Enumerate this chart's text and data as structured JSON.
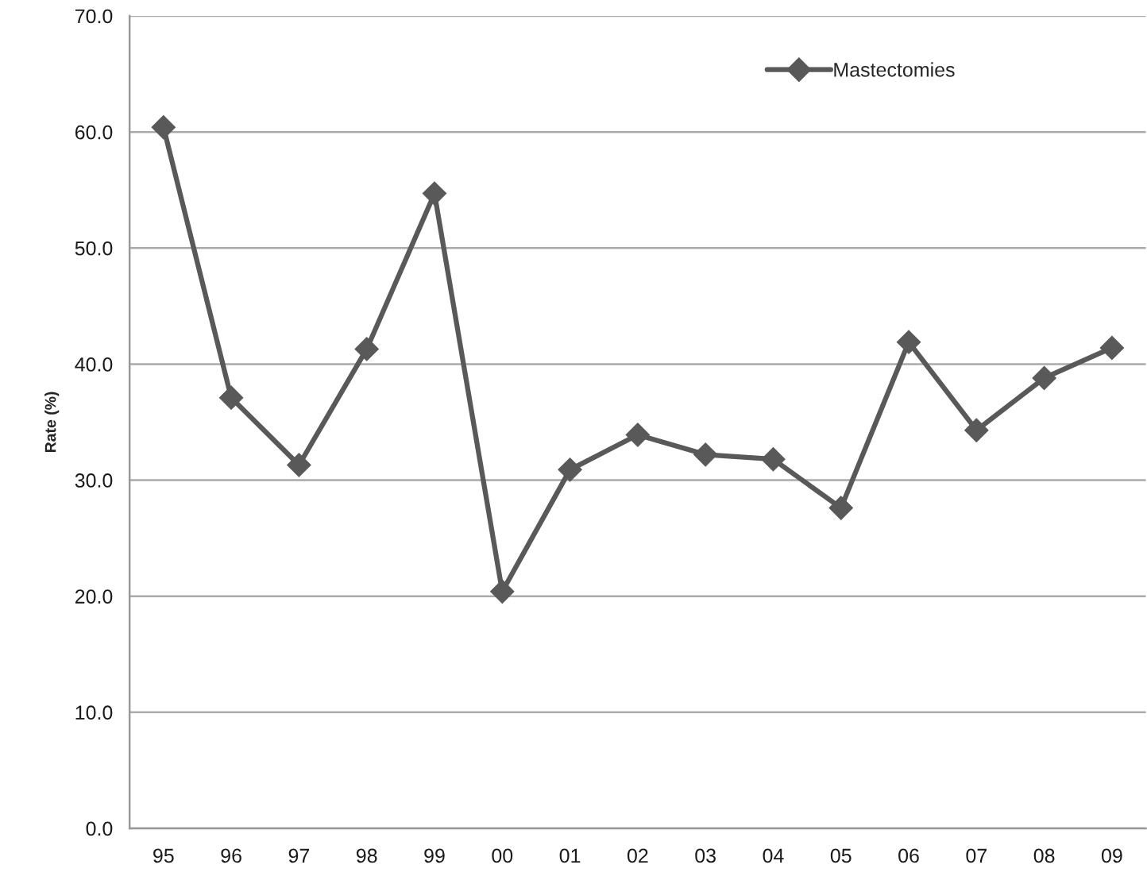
{
  "chart_data": {
    "type": "line",
    "ylabel": "Rate (%)",
    "categories": [
      "95",
      "96",
      "97",
      "98",
      "99",
      "00",
      "01",
      "02",
      "03",
      "04",
      "05",
      "06",
      "07",
      "08",
      "09"
    ],
    "series": [
      {
        "name": "Mastectomies",
        "color": "#595959",
        "values": [
          60.4,
          37.1,
          31.3,
          41.3,
          54.7,
          20.4,
          30.9,
          33.9,
          32.2,
          31.8,
          27.6,
          41.9,
          34.3,
          38.8,
          41.4
        ]
      }
    ],
    "ylim": [
      0,
      70
    ],
    "yticks": [
      {
        "value": 0,
        "label": "0.0"
      },
      {
        "value": 10,
        "label": "10.0"
      },
      {
        "value": 20,
        "label": "20.0"
      },
      {
        "value": 30,
        "label": "30.0"
      },
      {
        "value": 40,
        "label": "40.0"
      },
      {
        "value": 50,
        "label": "50.0"
      },
      {
        "value": 60,
        "label": "60.0"
      },
      {
        "value": 70,
        "label": "70.0"
      }
    ],
    "grid": "y",
    "legend": "top right",
    "marker": "diamond",
    "line_style": "solid"
  }
}
